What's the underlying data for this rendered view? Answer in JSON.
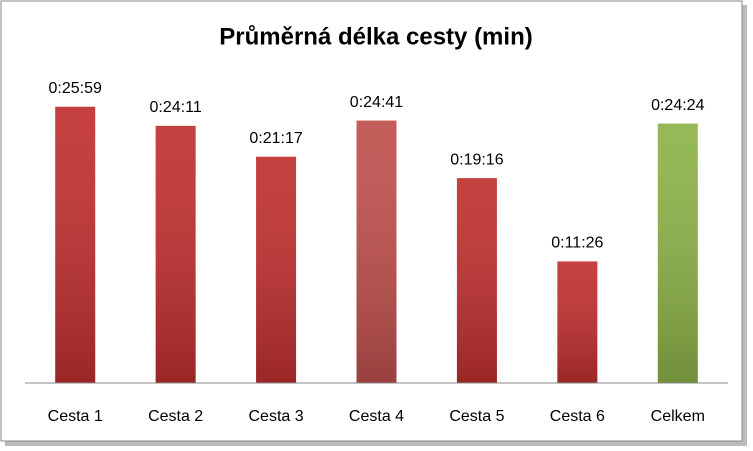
{
  "chart_data": {
    "type": "bar",
    "title": "Průměrná délka cesty (min)",
    "categories": [
      "Cesta 1",
      "Cesta 2",
      "Cesta 3",
      "Cesta 4",
      "Cesta 5",
      "Cesta 6",
      "Celkem"
    ],
    "values": [
      1559,
      1451,
      1277,
      1481,
      1156,
      686,
      1464
    ],
    "value_labels": [
      "0:25:59",
      "0:24:11",
      "0:21:17",
      "0:24:41",
      "0:19:16",
      "0:11:26",
      "0:24:24"
    ],
    "colors": [
      "#c0302f",
      "#c0302f",
      "#c0302f",
      "#c0504d",
      "#c0302f",
      "#c0302f",
      "#8db348"
    ],
    "ylim": [
      0,
      1800
    ]
  }
}
